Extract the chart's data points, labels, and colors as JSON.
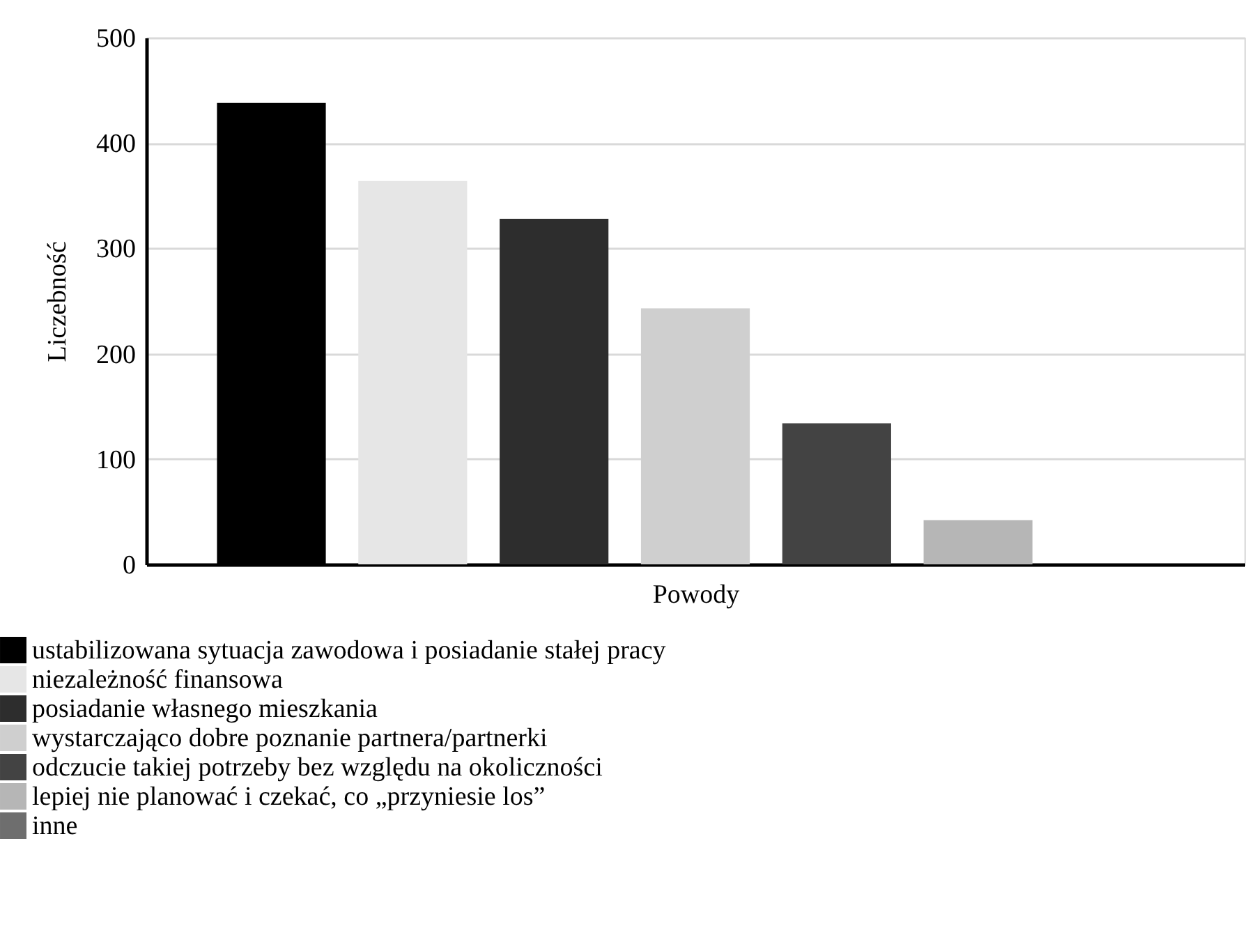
{
  "chart_data": {
    "type": "bar",
    "xlabel": "Powody",
    "ylabel": "Liczebność",
    "categories": [
      null,
      null,
      null,
      null,
      null,
      null,
      null
    ],
    "series": [
      {
        "name": "ustabilizowana sytuacja zawodowa i posiadanie stałej pracy",
        "color": "#000000",
        "values": [
          438,
          null,
          null,
          null,
          null,
          null,
          null
        ]
      },
      {
        "name": "niezależność finansowa",
        "color": "#e6e6e6",
        "values": [
          null,
          364,
          null,
          null,
          null,
          null,
          null
        ]
      },
      {
        "name": "posiadanie własnego mieszkania",
        "color": "#2d2d2d",
        "values": [
          null,
          null,
          328,
          null,
          null,
          null,
          null
        ]
      },
      {
        "name": "wystarczająco dobre poznanie partnera/partnerki",
        "color": "#cfcfcf",
        "values": [
          null,
          null,
          null,
          243,
          null,
          null,
          null
        ]
      },
      {
        "name": "odczucie takiej potrzeby bez względu na okoliczności",
        "color": "#434343",
        "values": [
          null,
          null,
          null,
          null,
          134,
          null,
          null
        ]
      },
      {
        "name": "lepiej nie planować i czekać, co „przyniesie los”",
        "color": "#b6b6b6",
        "values": [
          null,
          null,
          null,
          null,
          null,
          42,
          null
        ]
      },
      {
        "name": "inne",
        "color": "#6e6e6e",
        "values": [
          null,
          null,
          null,
          null,
          null,
          null,
          0
        ]
      }
    ],
    "ylim": [
      0,
      500
    ],
    "yticks": [
      0,
      100,
      200,
      300,
      400,
      500
    ],
    "grid": "y",
    "legend": "bottom left",
    "tick_labels": "y"
  }
}
